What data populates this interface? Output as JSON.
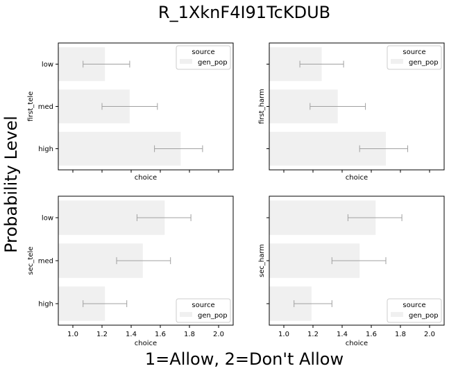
{
  "figure": {
    "suptitle": "R_1XknF4I91TcKDUB",
    "supxlabel": "1=Allow, 2=Don't Allow",
    "supylabel": "Probability Level"
  },
  "colors": {
    "bar": "#f0f0f0",
    "errorbar": "#a0a0a0",
    "axes": "#000000",
    "legend_border": "#cccccc"
  },
  "chart_data": [
    {
      "type": "bar",
      "orientation": "horizontal",
      "title": "",
      "xlabel": "choice",
      "ylabel": "first_tele",
      "categories": [
        "low",
        "med",
        "high"
      ],
      "xlim": [
        0.9,
        2.1
      ],
      "xticks": [
        "1.0",
        "1.2",
        "1.4",
        "1.6",
        "1.8",
        "2.0"
      ],
      "show_xticklabels": false,
      "show_yticklabels": true,
      "legend": {
        "title": "source",
        "entries": [
          "gen_pop"
        ],
        "position": "upper right"
      },
      "series": [
        {
          "name": "gen_pop",
          "values": [
            1.22,
            1.39,
            1.74
          ],
          "ci_low": [
            1.07,
            1.2,
            1.56
          ],
          "ci_high": [
            1.39,
            1.58,
            1.89
          ]
        }
      ]
    },
    {
      "type": "bar",
      "orientation": "horizontal",
      "title": "",
      "xlabel": "choice",
      "ylabel": "first_harm",
      "categories": [
        "low",
        "med",
        "high"
      ],
      "xlim": [
        0.9,
        2.1
      ],
      "xticks": [
        "1.0",
        "1.2",
        "1.4",
        "1.6",
        "1.8",
        "2.0"
      ],
      "show_xticklabels": false,
      "show_yticklabels": false,
      "legend": {
        "title": "source",
        "entries": [
          "gen_pop"
        ],
        "position": "upper right"
      },
      "series": [
        {
          "name": "gen_pop",
          "values": [
            1.26,
            1.37,
            1.7
          ],
          "ci_low": [
            1.11,
            1.18,
            1.52
          ],
          "ci_high": [
            1.41,
            1.56,
            1.85
          ]
        }
      ]
    },
    {
      "type": "bar",
      "orientation": "horizontal",
      "title": "",
      "xlabel": "choice",
      "ylabel": "sec_tele",
      "categories": [
        "low",
        "med",
        "high"
      ],
      "xlim": [
        0.9,
        2.1
      ],
      "xticks": [
        "1.0",
        "1.2",
        "1.4",
        "1.6",
        "1.8",
        "2.0"
      ],
      "show_xticklabels": true,
      "show_yticklabels": true,
      "legend": {
        "title": "source",
        "entries": [
          "gen_pop"
        ],
        "position": "lower right"
      },
      "series": [
        {
          "name": "gen_pop",
          "values": [
            1.63,
            1.48,
            1.22
          ],
          "ci_low": [
            1.44,
            1.3,
            1.07
          ],
          "ci_high": [
            1.81,
            1.67,
            1.37
          ]
        }
      ]
    },
    {
      "type": "bar",
      "orientation": "horizontal",
      "title": "",
      "xlabel": "choice",
      "ylabel": "sec_harm",
      "categories": [
        "low",
        "med",
        "high"
      ],
      "xlim": [
        0.9,
        2.1
      ],
      "xticks": [
        "1.0",
        "1.2",
        "1.4",
        "1.6",
        "1.8",
        "2.0"
      ],
      "show_xticklabels": true,
      "show_yticklabels": false,
      "legend": {
        "title": "source",
        "entries": [
          "gen_pop"
        ],
        "position": "lower right"
      },
      "series": [
        {
          "name": "gen_pop",
          "values": [
            1.63,
            1.52,
            1.19
          ],
          "ci_low": [
            1.44,
            1.33,
            1.07
          ],
          "ci_high": [
            1.81,
            1.7,
            1.33
          ]
        }
      ]
    }
  ]
}
